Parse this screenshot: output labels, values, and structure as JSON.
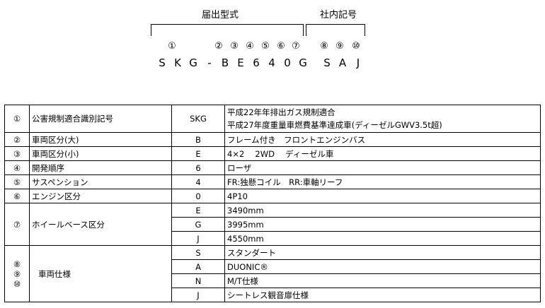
{
  "header": {
    "registered_type_label": "届出型式",
    "company_code_label": "社内記号",
    "circle_numbers": [
      "①",
      "②",
      "③",
      "④",
      "⑤",
      "⑥",
      "⑦",
      "⑧",
      "⑨",
      "⑩"
    ],
    "code_chars": [
      "S",
      "K",
      "G",
      "-",
      "B",
      "E",
      "6",
      "4",
      "0",
      "G",
      "S",
      "A",
      "J"
    ]
  },
  "table": {
    "rows": [
      {
        "num": "①",
        "label": "公害規制適合識別記号",
        "codes": [
          {
            "code": "SKG",
            "desc": "平成22年年排出ガス規制適合",
            "desc2": "平成27年度重量車燃費基準達成車(ディーゼルGWV3.5t超)"
          }
        ]
      },
      {
        "num": "②",
        "label": "車両区分(大)",
        "codes": [
          {
            "code": "B",
            "desc": "フレーム付き　フロントエンジンバス"
          }
        ]
      },
      {
        "num": "③",
        "label": "車両区分(小)",
        "codes": [
          {
            "code": "E",
            "desc": "4×2　 2WD　 ディーゼル車"
          }
        ]
      },
      {
        "num": "④",
        "label": "開発順序",
        "codes": [
          {
            "code": "6",
            "desc": "ローザ"
          }
        ]
      },
      {
        "num": "⑤",
        "label": "サスペンション",
        "codes": [
          {
            "code": "4",
            "desc": "FR:独懸コイル　RR:車軸リーフ"
          }
        ]
      },
      {
        "num": "⑥",
        "label": "エンジン区分",
        "codes": [
          {
            "code": "0",
            "desc": "4P10"
          }
        ]
      },
      {
        "num": "⑦",
        "label": "ホイールベース区分",
        "codes": [
          {
            "code": "E",
            "desc": "3490mm"
          },
          {
            "code": "G",
            "desc": "3995mm"
          },
          {
            "code": "J",
            "desc": "4550mm"
          }
        ]
      },
      {
        "num": "⑧\n⑨\n⑩",
        "label": "車両仕様",
        "codes": [
          {
            "code": "S",
            "desc": " スタンダート"
          },
          {
            "code": "A",
            "desc": " DUONIC®"
          },
          {
            "code": "N",
            "desc": " M/T仕様"
          },
          {
            "code": "J",
            "desc": " シートレス観音扉仕様"
          }
        ]
      }
    ]
  }
}
